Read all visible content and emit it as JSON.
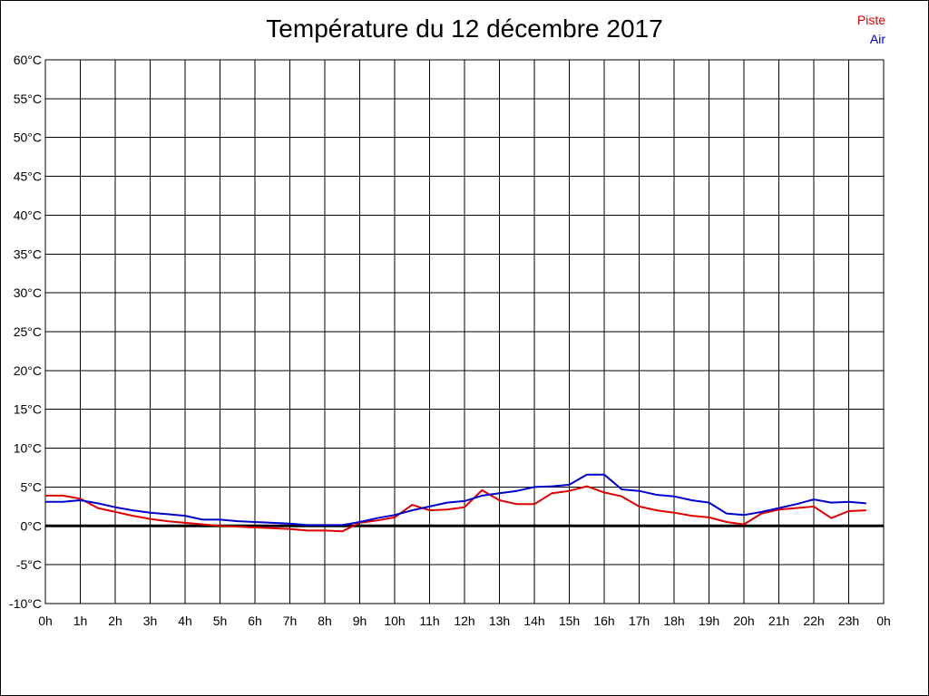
{
  "chart_data": {
    "type": "line",
    "title": "Température du 12 décembre 2017",
    "xlabel": "",
    "ylabel": "",
    "x_tick_labels": [
      "0h",
      "1h",
      "2h",
      "3h",
      "4h",
      "5h",
      "6h",
      "7h",
      "8h",
      "9h",
      "10h",
      "11h",
      "12h",
      "13h",
      "14h",
      "15h",
      "16h",
      "17h",
      "18h",
      "19h",
      "20h",
      "21h",
      "22h",
      "23h",
      "0h"
    ],
    "y_tick_labels": [
      "60°C",
      "55°C",
      "50°C",
      "45°C",
      "40°C",
      "35°C",
      "30°C",
      "25°C",
      "20°C",
      "15°C",
      "10°C",
      "5°C",
      "0°C",
      "-5°C",
      "-10°C"
    ],
    "xlim": [
      0,
      24
    ],
    "ylim": [
      -10,
      60
    ],
    "grid": true,
    "legend_position": "top-right",
    "series": [
      {
        "name": "Piste",
        "color": "#dd0000",
        "x": [
          0,
          0.5,
          1,
          1.5,
          2,
          2.5,
          3,
          3.5,
          4,
          4.5,
          5,
          5.5,
          6,
          6.5,
          7,
          7.5,
          8,
          8.5,
          9,
          9.5,
          10,
          10.5,
          11,
          11.5,
          12,
          12.5,
          13,
          13.5,
          14,
          14.5,
          15,
          15.5,
          16,
          16.5,
          17,
          17.5,
          18,
          18.5,
          19,
          19.5,
          20,
          20.5,
          21,
          21.5,
          22,
          22.5,
          23,
          23.5
        ],
        "values": [
          3.9,
          3.9,
          3.5,
          2.3,
          1.8,
          1.3,
          0.9,
          0.6,
          0.4,
          0.2,
          0.0,
          -0.1,
          -0.2,
          -0.3,
          -0.4,
          -0.6,
          -0.6,
          -0.7,
          0.4,
          0.7,
          1.1,
          2.7,
          2.0,
          2.1,
          2.4,
          4.6,
          3.3,
          2.8,
          2.8,
          4.2,
          4.5,
          5.1,
          4.3,
          3.8,
          2.5,
          2.0,
          1.7,
          1.3,
          1.1,
          0.5,
          0.2,
          1.6,
          2.1,
          2.3,
          2.5,
          1.0,
          1.9,
          2.0
        ]
      },
      {
        "name": "Air",
        "color": "#0000cc",
        "x": [
          0,
          0.5,
          1,
          1.5,
          2,
          2.5,
          3,
          3.5,
          4,
          4.5,
          5,
          5.5,
          6,
          6.5,
          7,
          7.5,
          8,
          8.5,
          9,
          9.5,
          10,
          10.5,
          11,
          11.5,
          12,
          12.5,
          13,
          13.5,
          14,
          14.5,
          15,
          15.5,
          16,
          16.5,
          17,
          17.5,
          18,
          18.5,
          19,
          19.5,
          20,
          20.5,
          21,
          21.5,
          22,
          22.5,
          23,
          23.5
        ],
        "values": [
          3.1,
          3.1,
          3.3,
          2.9,
          2.4,
          2.0,
          1.7,
          1.5,
          1.3,
          0.8,
          0.8,
          0.6,
          0.5,
          0.4,
          0.3,
          0.1,
          0.1,
          0.1,
          0.5,
          1.0,
          1.4,
          2.0,
          2.5,
          3.0,
          3.2,
          3.9,
          4.2,
          4.5,
          5.0,
          5.1,
          5.3,
          6.6,
          6.6,
          4.7,
          4.5,
          4.0,
          3.8,
          3.3,
          3.0,
          1.6,
          1.4,
          1.8,
          2.3,
          2.8,
          3.4,
          3.0,
          3.1,
          2.9
        ]
      }
    ]
  }
}
